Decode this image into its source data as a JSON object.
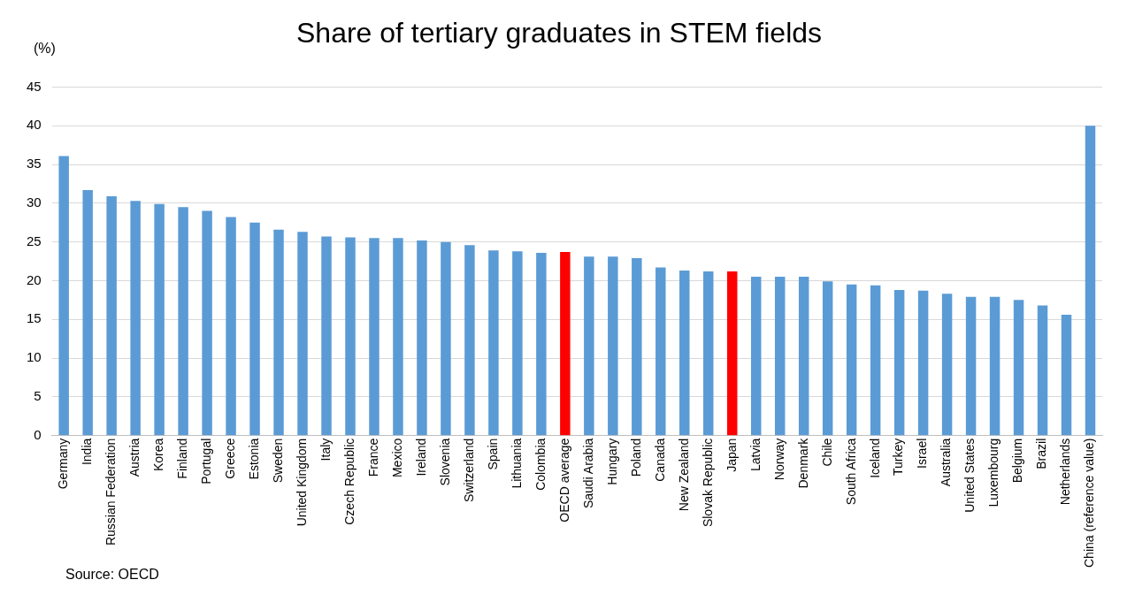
{
  "chart_data": {
    "type": "bar",
    "title": "Share of tertiary graduates in STEM fields",
    "ylabel": "(%)",
    "categories": [
      "Germany",
      "India",
      "Russian Federation",
      "Austria",
      "Korea",
      "Finland",
      "Portugal",
      "Greece",
      "Estonia",
      "Sweden",
      "United Kingdom",
      "Italy",
      "Czech Republic",
      "France",
      "Mexico",
      "Ireland",
      "Slovenia",
      "Switzerland",
      "Spain",
      "Lithuania",
      "Colombia",
      "OECD average",
      "Saudi Arabia",
      "Hungary",
      "Poland",
      "Canada",
      "New Zealand",
      "Slovak Republic",
      "Japan",
      "Latvia",
      "Norway",
      "Denmark",
      "Chile",
      "South Africa",
      "Iceland",
      "Turkey",
      "Israel",
      "Australia",
      "United States",
      "Luxembourg",
      "Belgium",
      "Brazil",
      "Netherlands",
      "China (reference value)"
    ],
    "values": [
      36.1,
      31.7,
      30.9,
      30.3,
      29.9,
      29.5,
      29.0,
      28.2,
      27.5,
      26.6,
      26.3,
      25.7,
      25.6,
      25.5,
      25.5,
      25.2,
      25.0,
      24.6,
      23.9,
      23.8,
      23.6,
      23.7,
      23.1,
      23.1,
      22.9,
      21.7,
      21.3,
      21.2,
      21.2,
      20.5,
      20.5,
      20.5,
      19.9,
      19.5,
      19.4,
      18.8,
      18.7,
      18.3,
      17.9,
      17.9,
      17.5,
      16.8,
      15.6,
      40.0
    ],
    "colors": [
      "#5b9bd5",
      "#5b9bd5",
      "#5b9bd5",
      "#5b9bd5",
      "#5b9bd5",
      "#5b9bd5",
      "#5b9bd5",
      "#5b9bd5",
      "#5b9bd5",
      "#5b9bd5",
      "#5b9bd5",
      "#5b9bd5",
      "#5b9bd5",
      "#5b9bd5",
      "#5b9bd5",
      "#5b9bd5",
      "#5b9bd5",
      "#5b9bd5",
      "#5b9bd5",
      "#5b9bd5",
      "#5b9bd5",
      "#ff0000",
      "#5b9bd5",
      "#5b9bd5",
      "#5b9bd5",
      "#5b9bd5",
      "#5b9bd5",
      "#5b9bd5",
      "#ff0000",
      "#5b9bd5",
      "#5b9bd5",
      "#5b9bd5",
      "#5b9bd5",
      "#5b9bd5",
      "#5b9bd5",
      "#5b9bd5",
      "#5b9bd5",
      "#5b9bd5",
      "#5b9bd5",
      "#5b9bd5",
      "#5b9bd5",
      "#5b9bd5",
      "#5b9bd5",
      "#5b9bd5"
    ],
    "ylim": [
      0,
      45
    ],
    "yticks": [
      0,
      5,
      10,
      15,
      20,
      25,
      30,
      35,
      40,
      45
    ],
    "grid": "y",
    "annotations": [
      "Source: OECD"
    ]
  }
}
